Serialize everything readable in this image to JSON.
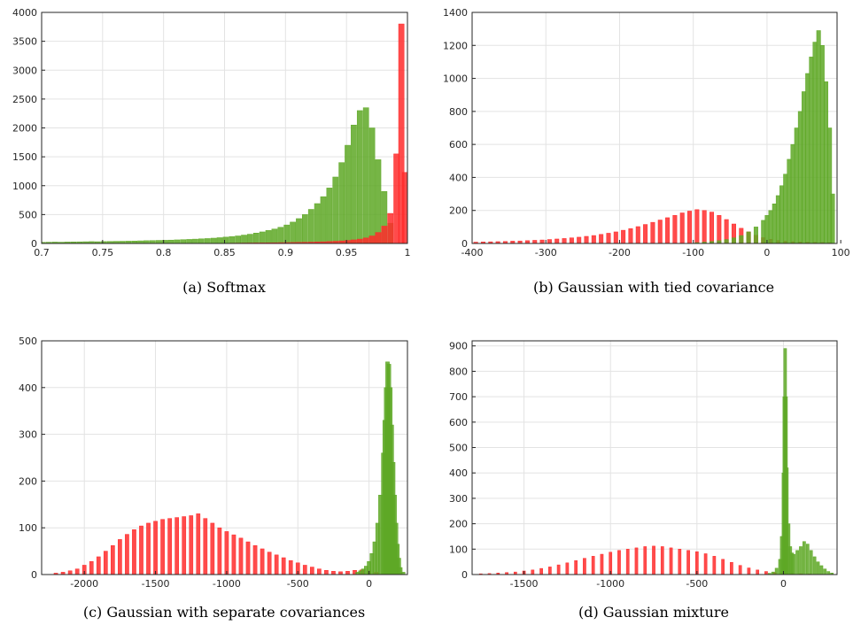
{
  "series_colors": {
    "green": "#5ea826",
    "red": "#ff2b2b"
  },
  "chart_data": [
    {
      "type": "bar",
      "caption": "(a) Softmax",
      "xlim": [
        0.7,
        1.0
      ],
      "ylim": [
        0,
        4000
      ],
      "xticks": [
        0.7,
        0.75,
        0.8,
        0.85,
        0.9,
        0.95,
        1
      ],
      "xtick_labels": [
        "0.7",
        "0.75",
        "0.8",
        "0.85",
        "0.9",
        "0.95",
        "1"
      ],
      "yticks": [
        0,
        500,
        1000,
        1500,
        2000,
        2500,
        3000,
        3500,
        4000
      ],
      "ytick_labels": [
        "0",
        "500",
        "1000",
        "1500",
        "2000",
        "2500",
        "3000",
        "3500",
        "4000"
      ],
      "grid": true,
      "series": [
        {
          "color": "green",
          "x": [
            0.701,
            0.706,
            0.711,
            0.716,
            0.721,
            0.726,
            0.731,
            0.736,
            0.741,
            0.746,
            0.751,
            0.756,
            0.761,
            0.766,
            0.771,
            0.776,
            0.781,
            0.786,
            0.791,
            0.796,
            0.801,
            0.806,
            0.811,
            0.816,
            0.821,
            0.826,
            0.831,
            0.836,
            0.841,
            0.846,
            0.851,
            0.856,
            0.861,
            0.866,
            0.871,
            0.876,
            0.881,
            0.886,
            0.891,
            0.896,
            0.901,
            0.906,
            0.911,
            0.916,
            0.921,
            0.926,
            0.931,
            0.936,
            0.941,
            0.946,
            0.951,
            0.956,
            0.961,
            0.966,
            0.971,
            0.976,
            0.981,
            0.986
          ],
          "values": [
            20,
            22,
            24,
            22,
            25,
            27,
            28,
            30,
            32,
            30,
            33,
            35,
            37,
            38,
            40,
            42,
            45,
            48,
            50,
            53,
            55,
            58,
            62,
            66,
            70,
            75,
            80,
            85,
            92,
            100,
            110,
            120,
            130,
            145,
            160,
            180,
            200,
            225,
            250,
            280,
            320,
            370,
            430,
            500,
            590,
            690,
            810,
            960,
            1150,
            1400,
            1700,
            2050,
            2300,
            2350,
            2000,
            1450,
            900,
            350
          ]
        },
        {
          "color": "red",
          "x": [
            0.856,
            0.861,
            0.866,
            0.871,
            0.876,
            0.881,
            0.886,
            0.891,
            0.896,
            0.901,
            0.906,
            0.911,
            0.916,
            0.921,
            0.926,
            0.931,
            0.936,
            0.941,
            0.946,
            0.951,
            0.956,
            0.961,
            0.966,
            0.971,
            0.976,
            0.981,
            0.986,
            0.991,
            0.995,
            0.998
          ],
          "values": [
            5,
            6,
            7,
            8,
            9,
            10,
            11,
            12,
            14,
            15,
            17,
            19,
            21,
            23,
            26,
            29,
            33,
            38,
            44,
            52,
            62,
            75,
            95,
            130,
            190,
            300,
            520,
            1550,
            3800,
            1230
          ]
        }
      ]
    },
    {
      "type": "bar",
      "caption": "(b) Gaussian with tied covariance",
      "xlim": [
        -400,
        95
      ],
      "ylim": [
        0,
        1400
      ],
      "xticks": [
        -400,
        -300,
        -200,
        -100,
        0,
        100
      ],
      "xtick_labels": [
        "-400",
        "-300",
        "-200",
        "-100",
        "0",
        "100"
      ],
      "yticks": [
        0,
        200,
        400,
        600,
        800,
        1000,
        1200,
        1400
      ],
      "ytick_labels": [
        "0",
        "200",
        "400",
        "600",
        "800",
        "1000",
        "1200",
        "1400"
      ],
      "grid": true,
      "series": [
        {
          "color": "red",
          "x": [
            -395,
            -385,
            -375,
            -365,
            -355,
            -345,
            -335,
            -325,
            -315,
            -305,
            -295,
            -285,
            -275,
            -265,
            -255,
            -245,
            -235,
            -225,
            -215,
            -205,
            -195,
            -185,
            -175,
            -165,
            -155,
            -145,
            -135,
            -125,
            -115,
            -105,
            -95,
            -85,
            -75,
            -65,
            -55,
            -45,
            -35,
            -25,
            -15,
            -5,
            5,
            15,
            25,
            35,
            45,
            55,
            65,
            75,
            85
          ],
          "values": [
            8,
            9,
            10,
            11,
            12,
            14,
            15,
            17,
            19,
            21,
            24,
            27,
            30,
            34,
            38,
            43,
            48,
            55,
            62,
            70,
            80,
            90,
            102,
            115,
            128,
            142,
            156,
            170,
            185,
            196,
            205,
            200,
            190,
            170,
            145,
            118,
            92,
            70,
            50,
            35,
            25,
            18,
            14,
            11,
            9,
            8,
            7,
            6,
            5
          ]
        },
        {
          "color": "green",
          "x": [
            -95,
            -85,
            -75,
            -65,
            -55,
            -45,
            -35,
            -25,
            -15,
            -5,
            0,
            5,
            10,
            15,
            20,
            25,
            30,
            35,
            40,
            45,
            50,
            55,
            60,
            65,
            70,
            75,
            80,
            85,
            89
          ],
          "values": [
            5,
            8,
            12,
            17,
            24,
            34,
            48,
            70,
            100,
            140,
            170,
            200,
            240,
            290,
            350,
            420,
            510,
            600,
            700,
            800,
            920,
            1030,
            1130,
            1220,
            1290,
            1200,
            980,
            700,
            300
          ]
        }
      ]
    },
    {
      "type": "bar",
      "caption": "(c) Gaussian with separate covariances",
      "xlim": [
        -2300,
        270
      ],
      "ylim": [
        0,
        500
      ],
      "xticks": [
        -2000,
        -1500,
        -1000,
        -500,
        0
      ],
      "xtick_labels": [
        "-2000",
        "-1500",
        "-1000",
        "-500",
        "0"
      ],
      "yticks": [
        0,
        100,
        200,
        300,
        400,
        500
      ],
      "ytick_labels": [
        "0",
        "100",
        "200",
        "300",
        "400",
        "500"
      ],
      "grid": true,
      "series": [
        {
          "color": "red",
          "x": [
            -2200,
            -2150,
            -2100,
            -2050,
            -2000,
            -1950,
            -1900,
            -1850,
            -1800,
            -1750,
            -1700,
            -1650,
            -1600,
            -1550,
            -1500,
            -1450,
            -1400,
            -1350,
            -1300,
            -1250,
            -1200,
            -1150,
            -1100,
            -1050,
            -1000,
            -950,
            -900,
            -850,
            -800,
            -750,
            -700,
            -650,
            -600,
            -550,
            -500,
            -450,
            -400,
            -350,
            -300,
            -250,
            -200,
            -150,
            -100,
            -50,
            0,
            50
          ],
          "values": [
            3,
            5,
            8,
            12,
            20,
            28,
            38,
            50,
            62,
            75,
            86,
            96,
            104,
            110,
            114,
            118,
            120,
            122,
            124,
            126,
            130,
            120,
            110,
            100,
            92,
            85,
            78,
            70,
            62,
            55,
            48,
            42,
            36,
            30,
            25,
            20,
            16,
            12,
            9,
            7,
            6,
            7,
            9,
            10,
            8,
            5
          ]
        },
        {
          "color": "green",
          "x": [
            -80,
            -60,
            -40,
            -20,
            0,
            20,
            40,
            60,
            80,
            100,
            110,
            120,
            130,
            140,
            150,
            160,
            170,
            180,
            190,
            200,
            210,
            220,
            240
          ],
          "values": [
            5,
            8,
            12,
            18,
            28,
            45,
            70,
            110,
            170,
            260,
            330,
            400,
            455,
            450,
            400,
            320,
            240,
            170,
            110,
            65,
            35,
            15,
            5
          ]
        }
      ]
    },
    {
      "type": "bar",
      "caption": "(d) Gaussian mixture",
      "xlim": [
        -1800,
        310
      ],
      "ylim": [
        0,
        920
      ],
      "xticks": [
        -1500,
        -1000,
        -500,
        0
      ],
      "xtick_labels": [
        "-1500",
        "-1000",
        "-500",
        "0"
      ],
      "yticks": [
        0,
        100,
        200,
        300,
        400,
        500,
        600,
        700,
        800,
        900
      ],
      "ytick_labels": [
        "0",
        "100",
        "200",
        "300",
        "400",
        "500",
        "600",
        "700",
        "800",
        "900"
      ],
      "grid": true,
      "series": [
        {
          "color": "red",
          "x": [
            -1750,
            -1700,
            -1650,
            -1600,
            -1550,
            -1500,
            -1450,
            -1400,
            -1350,
            -1300,
            -1250,
            -1200,
            -1150,
            -1100,
            -1050,
            -1000,
            -950,
            -900,
            -850,
            -800,
            -750,
            -700,
            -650,
            -600,
            -550,
            -500,
            -450,
            -400,
            -350,
            -300,
            -250,
            -200,
            -150,
            -100,
            -50,
            0,
            50,
            100,
            150
          ],
          "values": [
            3,
            4,
            6,
            8,
            10,
            14,
            18,
            24,
            30,
            38,
            46,
            55,
            64,
            72,
            80,
            88,
            95,
            100,
            105,
            110,
            112,
            110,
            105,
            100,
            95,
            90,
            82,
            72,
            60,
            48,
            36,
            26,
            18,
            12,
            8,
            5,
            4,
            3,
            2
          ]
        },
        {
          "color": "green",
          "x": [
            -80,
            -60,
            -40,
            -20,
            -10,
            0,
            5,
            10,
            15,
            20,
            30,
            40,
            50,
            60,
            80,
            100,
            120,
            140,
            160,
            180,
            200,
            220,
            240,
            260,
            280
          ],
          "values": [
            5,
            10,
            25,
            60,
            150,
            400,
            700,
            890,
            700,
            420,
            200,
            110,
            85,
            80,
            95,
            110,
            130,
            120,
            95,
            70,
            50,
            35,
            22,
            12,
            6
          ]
        }
      ]
    }
  ]
}
